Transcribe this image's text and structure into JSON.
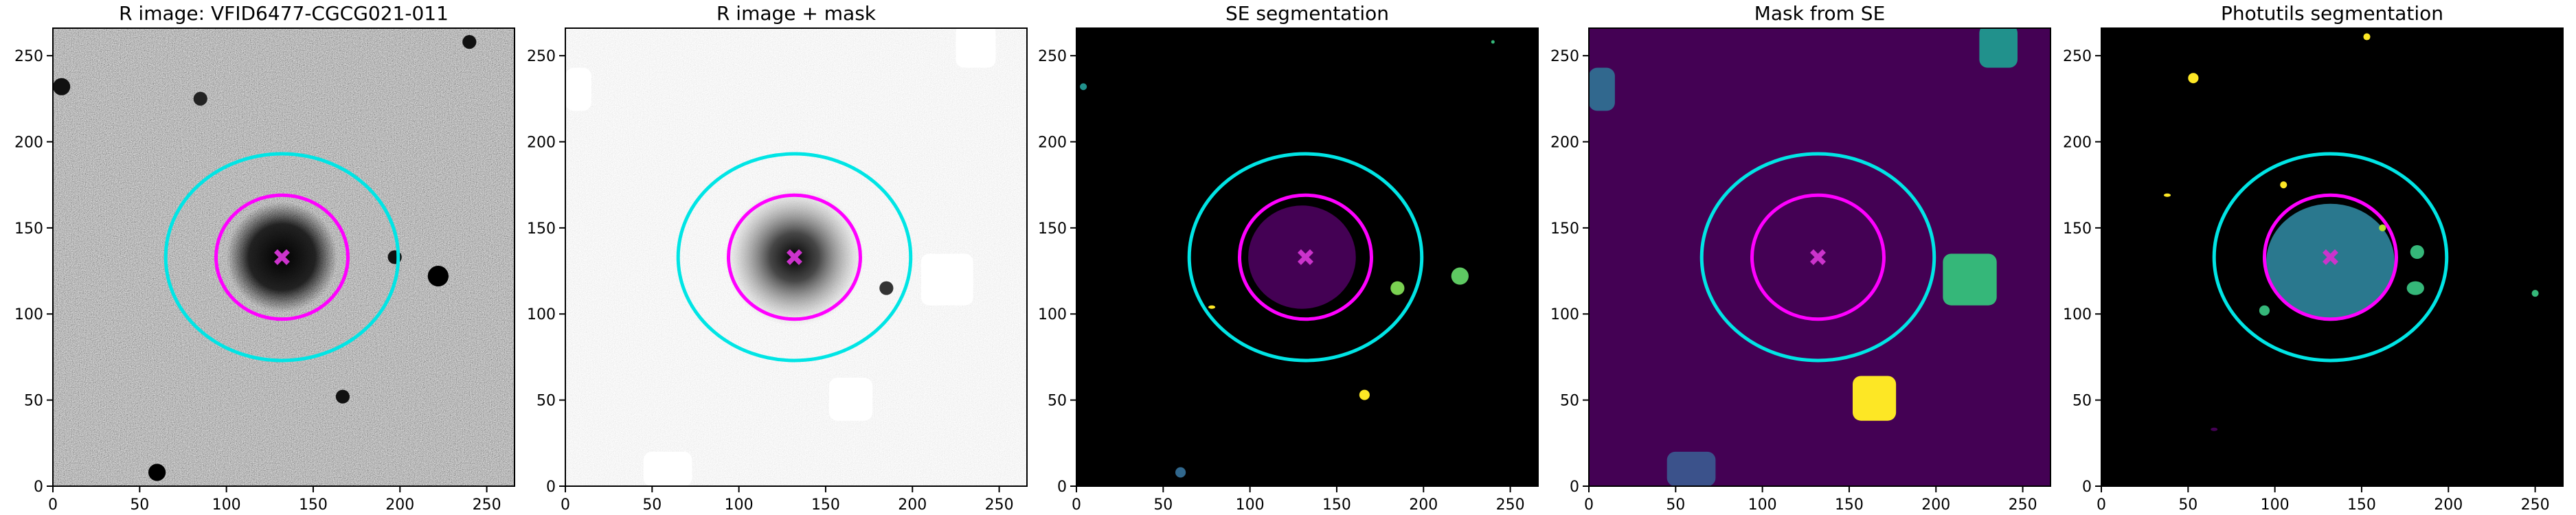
{
  "chart_data": [
    {
      "type": "image",
      "title": "R image: VFID6477-CGCG021-011",
      "xlim": [
        0,
        266
      ],
      "ylim": [
        0,
        266
      ],
      "xticks": [
        0,
        50,
        100,
        150,
        200,
        250
      ],
      "yticks": [
        0,
        50,
        100,
        150,
        200,
        250
      ],
      "ellipses": [
        {
          "x": 132,
          "y": 133,
          "rx": 67,
          "ry": 60,
          "color": "#00e5e5"
        },
        {
          "x": 132,
          "y": 133,
          "rx": 38,
          "ry": 36,
          "color": "#ff00ff"
        }
      ],
      "marker": {
        "x": 132,
        "y": 133,
        "color": "#cc33cc"
      }
    },
    {
      "type": "image",
      "title": "R image + mask",
      "xlim": [
        0,
        266
      ],
      "ylim": [
        0,
        266
      ],
      "xticks": [
        0,
        50,
        100,
        150,
        200,
        250
      ],
      "yticks": [
        0,
        50,
        100,
        150,
        200,
        250
      ],
      "ellipses": [
        {
          "x": 132,
          "y": 133,
          "rx": 67,
          "ry": 60,
          "color": "#00e5e5"
        },
        {
          "x": 132,
          "y": 133,
          "rx": 38,
          "ry": 36,
          "color": "#ff00ff"
        }
      ],
      "marker": {
        "x": 132,
        "y": 133,
        "color": "#cc33cc"
      }
    },
    {
      "type": "image",
      "title": "SE segmentation",
      "xlim": [
        0,
        266
      ],
      "ylim": [
        0,
        266
      ],
      "xticks": [
        0,
        50,
        100,
        150,
        200,
        250
      ],
      "yticks": [
        0,
        50,
        100,
        150,
        200,
        250
      ],
      "ellipses": [
        {
          "x": 132,
          "y": 133,
          "rx": 67,
          "ry": 60,
          "color": "#00e5e5"
        },
        {
          "x": 132,
          "y": 133,
          "rx": 38,
          "ry": 36,
          "color": "#ff00ff"
        }
      ],
      "marker": {
        "x": 132,
        "y": 133,
        "color": "#cc33cc"
      }
    },
    {
      "type": "image",
      "title": "Mask from SE",
      "xlim": [
        0,
        266
      ],
      "ylim": [
        0,
        266
      ],
      "xticks": [
        0,
        50,
        100,
        150,
        200,
        250
      ],
      "yticks": [
        0,
        50,
        100,
        150,
        200,
        250
      ],
      "ellipses": [
        {
          "x": 132,
          "y": 133,
          "rx": 67,
          "ry": 60,
          "color": "#00e5e5"
        },
        {
          "x": 132,
          "y": 133,
          "rx": 38,
          "ry": 36,
          "color": "#ff00ff"
        }
      ],
      "marker": {
        "x": 132,
        "y": 133,
        "color": "#cc33cc"
      }
    },
    {
      "type": "image",
      "title": "Photutils segmentation",
      "xlim": [
        0,
        266
      ],
      "ylim": [
        0,
        266
      ],
      "xticks": [
        0,
        50,
        100,
        150,
        200,
        250
      ],
      "yticks": [
        0,
        50,
        100,
        150,
        200,
        250
      ],
      "ellipses": [
        {
          "x": 132,
          "y": 133,
          "rx": 67,
          "ry": 60,
          "color": "#00e5e5"
        },
        {
          "x": 132,
          "y": 133,
          "rx": 38,
          "ry": 36,
          "color": "#ff00ff"
        }
      ],
      "marker": {
        "x": 132,
        "y": 133,
        "color": "#cc33cc"
      }
    }
  ]
}
